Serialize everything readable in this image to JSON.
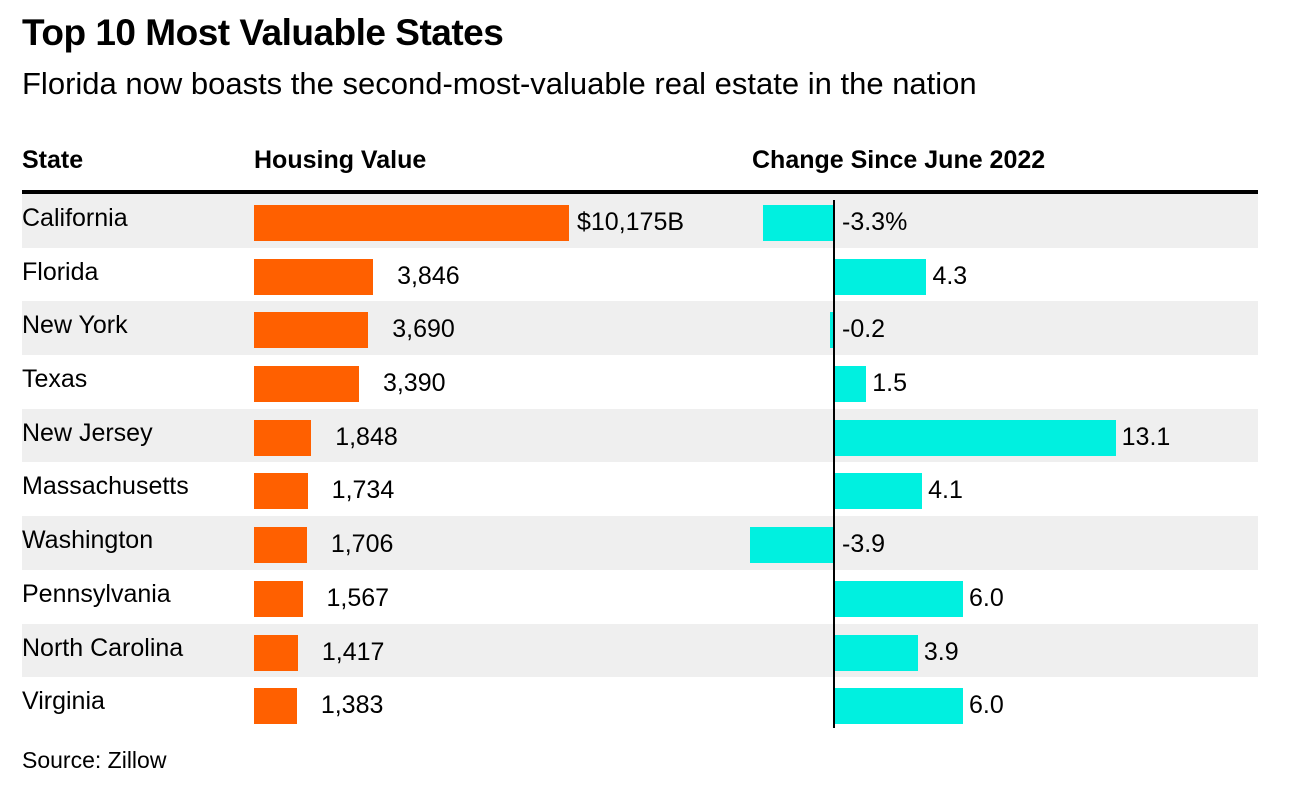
{
  "chart_data": {
    "type": "table",
    "title": "Top 10 Most Valuable States",
    "subtitle": "Florida now boasts the second-most-valuable real estate in the nation",
    "columns": [
      "State",
      "Housing Value",
      "Change Since June 2022"
    ],
    "categories": [
      "California",
      "Florida",
      "New York",
      "Texas",
      "New Jersey",
      "Massachusetts",
      "Washington",
      "Pennsylvania",
      "North Carolina",
      "Virginia"
    ],
    "series": [
      {
        "name": "Housing Value",
        "values": [
          10175,
          3846,
          3690,
          3390,
          1848,
          1734,
          1706,
          1567,
          1417,
          1383
        ],
        "labels": [
          "$10,175B",
          "3,846",
          "3,690",
          "3,390",
          "1,848",
          "1,734",
          "1,706",
          "1,567",
          "1,417",
          "1,383"
        ],
        "color": "#ff6000"
      },
      {
        "name": "Change Since June 2022",
        "values": [
          -3.3,
          4.3,
          -0.2,
          1.5,
          13.1,
          4.1,
          -3.9,
          6.0,
          3.9,
          6.0
        ],
        "labels": [
          "-3.3%",
          "4.3",
          "-0.2",
          "1.5",
          "13.1",
          "4.1",
          "-3.9",
          "6.0",
          "3.9",
          "6.0"
        ],
        "color": "#00f0e0"
      }
    ],
    "source": "Source: Zillow"
  }
}
